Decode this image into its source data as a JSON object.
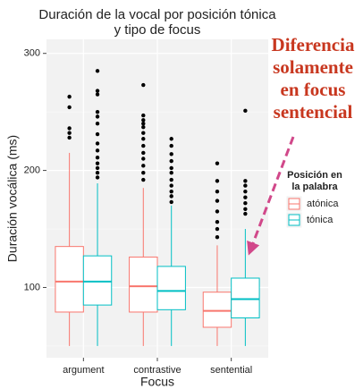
{
  "chart_data": {
    "type": "boxplot",
    "title": [
      "Duración de la vocal por posición tónica",
      "y tipo de focus"
    ],
    "x_label": "Focus",
    "y_label": "Duración vocálica (ms)",
    "categories": [
      "argument",
      "contrastive",
      "sentential"
    ],
    "ylim": [
      40,
      312
    ],
    "yticks": [
      100,
      200,
      300
    ],
    "minor_yticks": [
      50,
      150,
      250
    ],
    "grid": true,
    "legend": {
      "title": [
        "Posición en",
        "la palabra"
      ],
      "position": "right"
    },
    "annotation": [
      "Diferencia",
      "solamente",
      "en focus",
      "sentencial"
    ],
    "series": [
      {
        "name": "atónica",
        "color": "#F8766D",
        "boxes": [
          {
            "whisker_low": 50,
            "q1": 79,
            "median": 105,
            "q3": 135,
            "whisker_high": 215,
            "outliers": [
              263,
              254,
              236,
              232,
              228
            ]
          },
          {
            "whisker_low": 50,
            "q1": 79,
            "median": 101,
            "q3": 126,
            "whisker_high": 185,
            "outliers": [
              273,
              247,
              243,
              240,
              237,
              232,
              227,
              221,
              215,
              210,
              204,
              198,
              192
            ]
          },
          {
            "whisker_low": 50,
            "q1": 66,
            "median": 80,
            "q3": 96,
            "whisker_high": 136,
            "outliers": [
              206,
              191,
              182,
              174,
              165,
              156,
              150,
              143
            ]
          }
        ]
      },
      {
        "name": "tónica",
        "color": "#00BFC4",
        "boxes": [
          {
            "whisker_low": 50,
            "q1": 85,
            "median": 105,
            "q3": 127,
            "whisker_high": 189,
            "outliers": [
              285,
              268,
              265,
              250,
              246,
              240,
              231,
              223,
              217,
              211,
              206,
              202,
              198,
              194
            ]
          },
          {
            "whisker_low": 50,
            "q1": 81,
            "median": 97,
            "q3": 118,
            "whisker_high": 170,
            "outliers": [
              227,
              221,
              214,
              208,
              202,
              198,
              192,
              187,
              182,
              178,
              173
            ]
          },
          {
            "whisker_low": 50,
            "q1": 74,
            "median": 90,
            "q3": 108,
            "whisker_high": 150,
            "outliers": [
              251,
              191,
              187,
              182,
              177,
              172,
              167,
              163
            ]
          }
        ]
      }
    ]
  }
}
